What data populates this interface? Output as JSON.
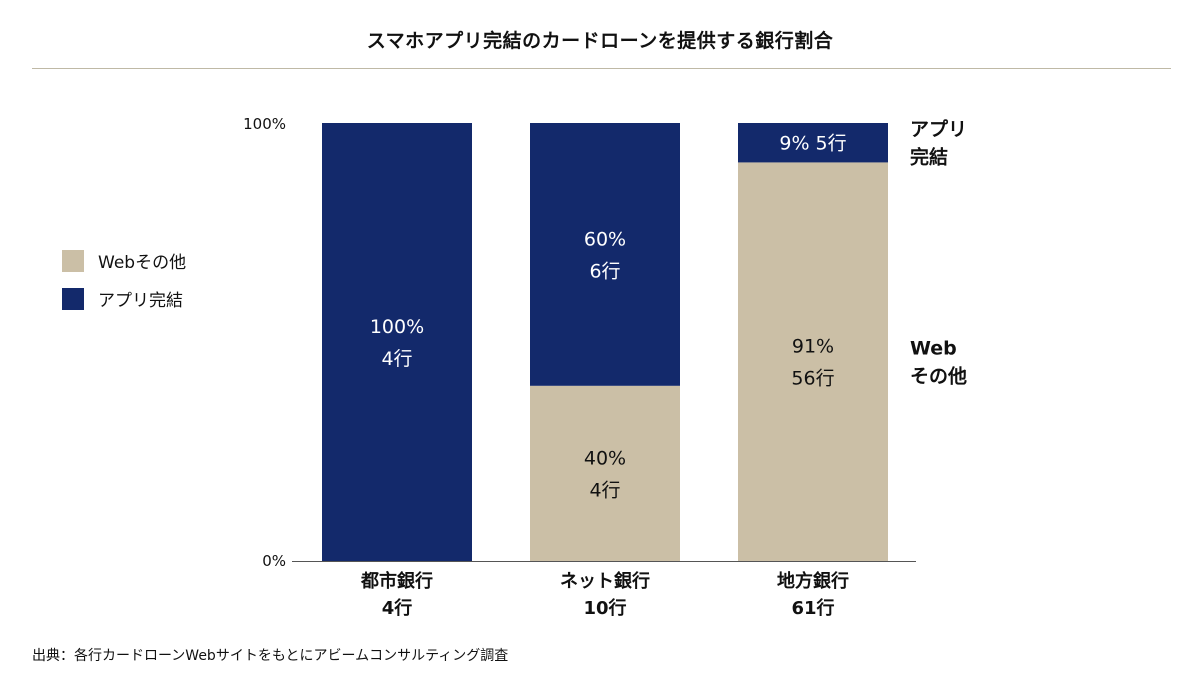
{
  "title": "スマホアプリ完結のカードローンを提供する銀行割合",
  "source": "出典：各行カードローンWebサイトをもとにアビームコンサルティング調査",
  "colors": {
    "web": "#cbbfa6",
    "app": "#13296b"
  },
  "legend": [
    {
      "key": "web",
      "label": "Webその他"
    },
    {
      "key": "app",
      "label": "アプリ完結"
    }
  ],
  "chart_data": {
    "type": "bar",
    "stacked": true,
    "title": "スマホアプリ完結のカードローンを提供する銀行割合",
    "y_ticks": [
      "100%",
      "0%"
    ],
    "ylim": [
      0,
      100
    ],
    "categories": [
      {
        "name": "都市銀行",
        "total": "4行"
      },
      {
        "name": "ネット銀行",
        "total": "10行"
      },
      {
        "name": "地方銀行",
        "total": "61行"
      }
    ],
    "series": [
      {
        "name": "Webその他",
        "key": "web",
        "values": [
          0,
          40,
          91
        ],
        "counts": [
          0,
          4,
          56
        ],
        "labels": [
          null,
          [
            "40%",
            "4行"
          ],
          [
            "91%",
            "56行"
          ]
        ]
      },
      {
        "name": "アプリ完結",
        "key": "app",
        "values": [
          100,
          60,
          9
        ],
        "counts": [
          4,
          6,
          5
        ],
        "labels": [
          [
            "100%",
            "4行"
          ],
          [
            "60%",
            "6行"
          ],
          [
            "9% 5行"
          ]
        ]
      }
    ],
    "right_annotations": [
      {
        "series": "app",
        "lines": [
          "アプリ",
          "完結"
        ]
      },
      {
        "series": "web",
        "lines": [
          "Web",
          "その他"
        ]
      }
    ]
  }
}
